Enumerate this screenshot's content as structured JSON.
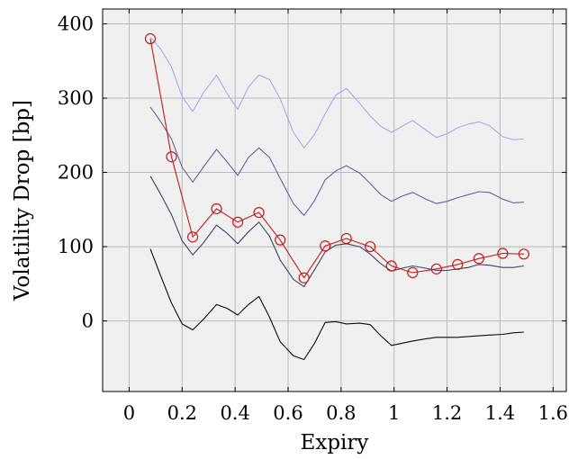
{
  "chart_data": {
    "type": "line",
    "title": "",
    "xlabel": "Expiry",
    "ylabel": "Volatility Drop [bp]",
    "xlim": [
      -0.1,
      1.65
    ],
    "ylim": [
      -95,
      420
    ],
    "xticks": [
      0,
      0.2,
      0.4,
      0.6,
      0.8,
      1,
      1.2,
      1.4,
      1.6
    ],
    "xtick_labels": [
      "0",
      "0.2",
      "0.4",
      "0.6",
      "0.8",
      "1",
      "1.2",
      "1.4",
      "1.6"
    ],
    "yticks": [
      0,
      100,
      200,
      300,
      400
    ],
    "ytick_labels": [
      "0",
      "100",
      "200",
      "300",
      "400"
    ],
    "grid": true,
    "legend": "none",
    "background_color": "#f0f0f0",
    "series": [
      {
        "color": "#0a0a0a",
        "marker": "none",
        "x": [
          0.08,
          0.12,
          0.16,
          0.2,
          0.24,
          0.28,
          0.33,
          0.37,
          0.41,
          0.45,
          0.49,
          0.53,
          0.57,
          0.62,
          0.66,
          0.7,
          0.74,
          0.78,
          0.82,
          0.87,
          0.91,
          0.95,
          0.99,
          1.03,
          1.07,
          1.12,
          1.16,
          1.2,
          1.24,
          1.28,
          1.32,
          1.36,
          1.41,
          1.45,
          1.49
        ],
        "y": [
          97,
          60,
          24,
          -4,
          -12,
          2,
          22,
          17,
          8,
          22,
          33,
          5,
          -28,
          -47,
          -52,
          -30,
          -2,
          -1,
          -4,
          -3,
          -5,
          -20,
          -33,
          -30,
          -27,
          -24,
          -22,
          -22,
          -22,
          -21,
          -20,
          -19,
          -18,
          -16,
          -15
        ]
      },
      {
        "color": "#40406e",
        "marker": "none",
        "x": [
          0.08,
          0.12,
          0.16,
          0.2,
          0.24,
          0.28,
          0.33,
          0.37,
          0.41,
          0.45,
          0.49,
          0.53,
          0.57,
          0.62,
          0.66,
          0.7,
          0.74,
          0.78,
          0.82,
          0.87,
          0.91,
          0.95,
          0.99,
          1.03,
          1.07,
          1.12,
          1.16,
          1.2,
          1.24,
          1.28,
          1.32,
          1.36,
          1.41,
          1.45,
          1.49
        ],
        "y": [
          195,
          170,
          143,
          108,
          89,
          105,
          129,
          118,
          104,
          120,
          133,
          114,
          82,
          56,
          46,
          69,
          93,
          102,
          104,
          100,
          90,
          77,
          67,
          71,
          74,
          71,
          68,
          68,
          70,
          72,
          76,
          75,
          72,
          72,
          74
        ]
      },
      {
        "color": "#6464a0",
        "marker": "none",
        "x": [
          0.08,
          0.12,
          0.16,
          0.2,
          0.24,
          0.28,
          0.33,
          0.37,
          0.41,
          0.45,
          0.49,
          0.53,
          0.57,
          0.62,
          0.66,
          0.7,
          0.74,
          0.78,
          0.82,
          0.87,
          0.91,
          0.95,
          0.99,
          1.03,
          1.07,
          1.12,
          1.16,
          1.2,
          1.24,
          1.28,
          1.32,
          1.36,
          1.41,
          1.45,
          1.49
        ],
        "y": [
          288,
          268,
          245,
          207,
          187,
          207,
          231,
          214,
          196,
          220,
          233,
          220,
          192,
          158,
          142,
          162,
          190,
          202,
          209,
          199,
          185,
          170,
          161,
          168,
          173,
          164,
          158,
          161,
          166,
          170,
          174,
          173,
          164,
          159,
          160
        ]
      },
      {
        "color": "#a8a8f2",
        "marker": "none",
        "x": [
          0.08,
          0.12,
          0.16,
          0.2,
          0.24,
          0.28,
          0.33,
          0.37,
          0.41,
          0.45,
          0.49,
          0.53,
          0.57,
          0.62,
          0.66,
          0.7,
          0.74,
          0.78,
          0.82,
          0.87,
          0.91,
          0.95,
          0.99,
          1.03,
          1.07,
          1.12,
          1.16,
          1.2,
          1.24,
          1.28,
          1.32,
          1.36,
          1.41,
          1.45,
          1.49
        ],
        "y": [
          382,
          366,
          342,
          302,
          282,
          307,
          331,
          306,
          285,
          315,
          331,
          325,
          299,
          254,
          233,
          251,
          279,
          304,
          313,
          293,
          276,
          262,
          254,
          262,
          270,
          257,
          247,
          252,
          260,
          265,
          268,
          263,
          248,
          244,
          245
        ]
      },
      {
        "color": "#c41a1a",
        "marker": "circle",
        "x": [
          0.08,
          0.16,
          0.24,
          0.33,
          0.41,
          0.49,
          0.57,
          0.66,
          0.74,
          0.82,
          0.91,
          0.99,
          1.07,
          1.16,
          1.24,
          1.32,
          1.41,
          1.49
        ],
        "y": [
          380,
          221,
          113,
          151,
          133,
          146,
          109,
          58,
          101,
          111,
          100,
          74,
          65,
          70,
          76,
          84,
          91,
          90
        ]
      }
    ]
  }
}
